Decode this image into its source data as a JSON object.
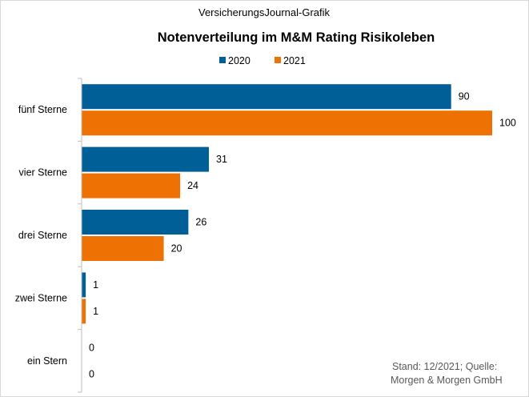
{
  "header": "VersicherungsJournal-Grafik",
  "source_note": [
    "Stand: 12/2021;  Quelle:",
    "Morgen & Morgen GmbH"
  ],
  "chart_data": {
    "type": "bar",
    "orientation": "horizontal",
    "title": "Notenverteilung im M&M Rating Risikoleben",
    "categories": [
      "fünf Sterne",
      "vier Sterne",
      "drei Sterne",
      "zwei Sterne",
      "ein Stern"
    ],
    "series": [
      {
        "name": "2020",
        "color": "#005f96",
        "values": [
          90,
          31,
          26,
          1,
          0
        ]
      },
      {
        "name": "2021",
        "color": "#ee7203",
        "values": [
          100,
          24,
          20,
          1,
          0
        ]
      }
    ],
    "xlim": [
      0,
      100
    ],
    "grid": false,
    "legend": "top-center",
    "data_labels": true
  }
}
